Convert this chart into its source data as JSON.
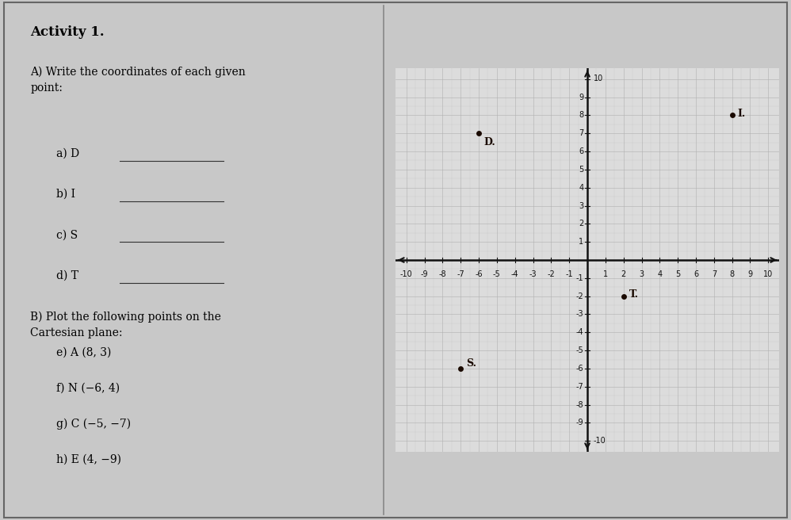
{
  "title": "Activity 1.",
  "section_A_header": "A) Write the coordinates of each given\npoint:",
  "items_A": [
    [
      "a) D",
      0.72
    ],
    [
      "b) I",
      0.64
    ],
    [
      "c) S",
      0.56
    ],
    [
      "d) T",
      0.48
    ]
  ],
  "section_B_header": "B) Plot the following points on the\nCartesian plane:",
  "items_B": [
    [
      "e) A (8, 3)",
      0.33
    ],
    [
      "f) N (−6, 4)",
      0.26
    ],
    [
      "g) C (−5, −7)",
      0.19
    ],
    [
      "h) E (4, −9)",
      0.12
    ]
  ],
  "given_points": {
    "D": [
      -6,
      7
    ],
    "I": [
      8,
      8
    ],
    "S": [
      -7,
      -6
    ],
    "T": [
      2,
      -2
    ]
  },
  "axis_range": [
    -10,
    10
  ],
  "grid_color": "#b0b0b0",
  "axis_color": "#111111",
  "point_color": "#1a0a00",
  "bg_color": "#dcdcdc",
  "text_bg": "#dcdcdc",
  "panel_bg": "#c8c8c8",
  "border_color": "#666666",
  "divider_color": "#888888",
  "font_size_title": 12,
  "font_size_text": 10,
  "font_size_tick": 7,
  "font_size_point_label": 9,
  "point_marker_size": 5
}
